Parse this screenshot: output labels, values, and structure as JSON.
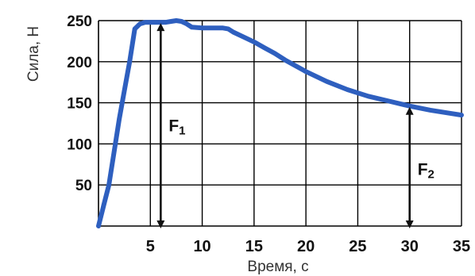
{
  "chart_data": {
    "type": "line",
    "title": "",
    "xlabel": "Время, с",
    "ylabel": "Сила, Н",
    "xlim": [
      0,
      35
    ],
    "ylim": [
      0,
      250
    ],
    "x_ticks": [
      5,
      10,
      15,
      20,
      25,
      30,
      35
    ],
    "y_ticks": [
      50,
      100,
      150,
      200,
      250
    ],
    "grid": true,
    "colors": {
      "line": "#2e5fbf",
      "grid": "#000000",
      "arrows": "#111111"
    },
    "series": [
      {
        "x": [
          0,
          0.5,
          1,
          1.5,
          2,
          2.5,
          3,
          3.5,
          4,
          4.5,
          5,
          5.5,
          6,
          6.5,
          7,
          7.5,
          8,
          8.5,
          9,
          10,
          11,
          12,
          12.5,
          13,
          14,
          15,
          16,
          17,
          18,
          19,
          20,
          22,
          24,
          26,
          28,
          30,
          32,
          34,
          35
        ],
        "y": [
          0,
          25,
          50,
          90,
          130,
          165,
          200,
          240,
          246,
          248,
          248,
          248,
          248,
          248,
          249,
          250,
          249,
          246,
          242,
          241,
          241,
          241,
          240,
          236,
          230,
          224,
          217,
          210,
          202,
          195,
          188,
          176,
          166,
          158,
          152,
          146,
          141,
          137,
          135
        ]
      }
    ],
    "annotations": [
      {
        "name": "F",
        "subscript": "1",
        "x": 6,
        "y_from": 0,
        "y_to": 248
      },
      {
        "name": "F",
        "subscript": "2",
        "x": 30,
        "y_from": 0,
        "y_to": 146
      }
    ]
  }
}
